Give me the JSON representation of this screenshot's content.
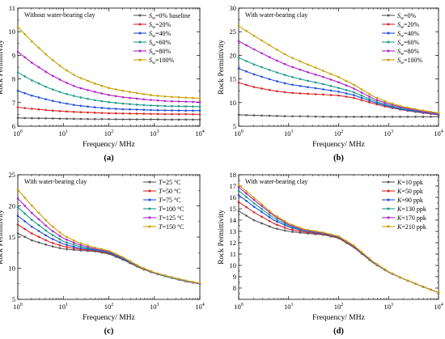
{
  "chart_data": [
    {
      "type": "line",
      "panel_label": "(a)",
      "annotation": "Without water-bearing clay",
      "xlabel": "Frequency/ MHz",
      "ylabel": "Rock Permittivity",
      "x_scale": "log",
      "xlim": [
        1,
        10000
      ],
      "x_ticks": [
        1,
        10,
        100,
        1000,
        10000
      ],
      "ylim": [
        6,
        11
      ],
      "y_ticks": [
        6,
        7,
        8,
        9,
        10,
        11
      ],
      "x": [
        1,
        2,
        5,
        10,
        20,
        50,
        100,
        200,
        500,
        1000,
        2000,
        5000,
        10000
      ],
      "series": [
        {
          "name": "Sw=0% baseline",
          "color": "#555555",
          "values": [
            6.35,
            6.34,
            6.33,
            6.32,
            6.31,
            6.3,
            6.3,
            6.29,
            6.29,
            6.29,
            6.28,
            6.28,
            6.28
          ]
        },
        {
          "name": "Sw=20%",
          "color": "#d62728",
          "values": [
            6.8,
            6.74,
            6.67,
            6.63,
            6.6,
            6.57,
            6.55,
            6.54,
            6.53,
            6.52,
            6.51,
            6.51,
            6.5
          ]
        },
        {
          "name": "Sw=40%",
          "color": "#1f4fd6",
          "values": [
            7.5,
            7.3,
            7.1,
            6.98,
            6.88,
            6.8,
            6.75,
            6.72,
            6.7,
            6.68,
            6.67,
            6.66,
            6.66
          ]
        },
        {
          "name": "Sw=60%",
          "color": "#1a9a8a",
          "values": [
            8.28,
            7.95,
            7.6,
            7.4,
            7.25,
            7.1,
            7.02,
            6.96,
            6.9,
            6.87,
            6.85,
            6.84,
            6.83
          ]
        },
        {
          "name": "Sw=80%",
          "color": "#b020c8",
          "values": [
            9.15,
            8.7,
            8.2,
            7.9,
            7.65,
            7.45,
            7.32,
            7.23,
            7.15,
            7.1,
            7.06,
            7.04,
            7.02
          ]
        },
        {
          "name": "Sw=100%",
          "color": "#c8a000",
          "values": [
            10.2,
            9.6,
            8.9,
            8.45,
            8.1,
            7.8,
            7.62,
            7.5,
            7.38,
            7.3,
            7.25,
            7.21,
            7.18
          ]
        }
      ]
    },
    {
      "type": "line",
      "panel_label": "(b)",
      "annotation": "With water-bearing clay",
      "xlabel": "Frequency/ MHz",
      "ylabel": "Rock Permittivity",
      "x_scale": "log",
      "xlim": [
        1,
        10000
      ],
      "x_ticks": [
        1,
        10,
        100,
        1000,
        10000
      ],
      "ylim": [
        5,
        30
      ],
      "y_ticks": [
        5,
        10,
        15,
        20,
        25,
        30
      ],
      "x": [
        1,
        2,
        5,
        10,
        20,
        50,
        100,
        200,
        500,
        1000,
        2000,
        5000,
        10000
      ],
      "series": [
        {
          "name": "Sw=0%",
          "color": "#555555",
          "values": [
            7.4,
            7.3,
            7.2,
            7.1,
            7.1,
            7.0,
            7.0,
            7.0,
            7.0,
            7.0,
            7.0,
            7.0,
            7.0
          ]
        },
        {
          "name": "Sw=20%",
          "color": "#d62728",
          "values": [
            14.2,
            13.3,
            12.5,
            12.1,
            11.9,
            11.7,
            11.5,
            11.0,
            9.8,
            9.0,
            8.4,
            7.8,
            7.4
          ]
        },
        {
          "name": "Sw=40%",
          "color": "#1f4fd6",
          "values": [
            17.2,
            16.0,
            14.7,
            13.9,
            13.4,
            12.8,
            12.3,
            11.6,
            10.1,
            9.2,
            8.5,
            7.9,
            7.5
          ]
        },
        {
          "name": "Sw=60%",
          "color": "#1a9a8a",
          "values": [
            19.5,
            18.1,
            16.6,
            15.6,
            14.8,
            13.9,
            13.1,
            12.2,
            10.4,
            9.4,
            8.7,
            8.0,
            7.6
          ]
        },
        {
          "name": "Sw=80%",
          "color": "#b020c8",
          "values": [
            23.0,
            21.3,
            19.2,
            17.8,
            16.7,
            15.4,
            14.3,
            13.0,
            10.8,
            9.7,
            8.9,
            8.1,
            7.7
          ]
        },
        {
          "name": "Sw=100%",
          "color": "#c8a000",
          "values": [
            26.2,
            24.2,
            21.6,
            19.8,
            18.4,
            16.7,
            15.4,
            13.8,
            11.3,
            10.0,
            9.1,
            8.3,
            7.8
          ]
        }
      ]
    },
    {
      "type": "line",
      "panel_label": "(c)",
      "annotation": "With water-bearing clay",
      "xlabel": "Frequency/ MHz",
      "ylabel": "Rock Permittivity",
      "x_scale": "log",
      "xlim": [
        1,
        10000
      ],
      "x_ticks": [
        1,
        10,
        100,
        1000,
        10000
      ],
      "ylim": [
        5,
        25
      ],
      "y_ticks": [
        5,
        10,
        15,
        20,
        25
      ],
      "x": [
        1,
        2,
        5,
        10,
        20,
        50,
        100,
        200,
        500,
        1000,
        2000,
        5000,
        10000
      ],
      "series": [
        {
          "name": "T=25 °C",
          "color": "#555555",
          "values": [
            15.6,
            14.5,
            13.6,
            13.1,
            12.9,
            12.7,
            12.3,
            11.4,
            10.0,
            9.2,
            8.6,
            7.9,
            7.5
          ]
        },
        {
          "name": "T=50 °C",
          "color": "#d62728",
          "values": [
            17.0,
            15.6,
            14.2,
            13.5,
            13.1,
            12.8,
            12.4,
            11.5,
            10.0,
            9.2,
            8.6,
            7.9,
            7.5
          ]
        },
        {
          "name": "T=75 °C",
          "color": "#1f4fd6",
          "values": [
            18.4,
            16.7,
            14.9,
            13.9,
            13.3,
            12.9,
            12.5,
            11.5,
            10.1,
            9.2,
            8.6,
            7.9,
            7.5
          ]
        },
        {
          "name": "T=100 °C",
          "color": "#1a9a8a",
          "values": [
            19.8,
            17.8,
            15.6,
            14.3,
            13.6,
            13.0,
            12.6,
            11.6,
            10.1,
            9.3,
            8.6,
            8.0,
            7.5
          ]
        },
        {
          "name": "T=125 °C",
          "color": "#b020c8",
          "values": [
            21.2,
            18.9,
            16.3,
            14.8,
            13.9,
            13.1,
            12.7,
            11.7,
            10.2,
            9.3,
            8.7,
            8.0,
            7.5
          ]
        },
        {
          "name": "T=150 °C",
          "color": "#c8a000",
          "values": [
            22.6,
            20.1,
            17.1,
            15.3,
            14.2,
            13.3,
            12.8,
            11.8,
            10.2,
            9.3,
            8.7,
            8.0,
            7.6
          ]
        }
      ]
    },
    {
      "type": "line",
      "panel_label": "(d)",
      "annotation": "With water-bearing clay",
      "xlabel": "Frequency/ MHz",
      "ylabel": "Rock Permittivity",
      "x_scale": "log",
      "xlim": [
        1,
        10000
      ],
      "x_ticks": [
        1,
        10,
        100,
        1000,
        10000
      ],
      "ylim": [
        7,
        18
      ],
      "y_ticks": [
        8,
        9,
        10,
        11,
        12,
        13,
        14,
        15,
        16,
        17,
        18
      ],
      "x": [
        1,
        2,
        5,
        10,
        20,
        50,
        100,
        200,
        500,
        1000,
        2000,
        5000,
        10000
      ],
      "series": [
        {
          "name": "K=10 ppk",
          "color": "#555555",
          "values": [
            14.8,
            14.0,
            13.3,
            13.0,
            12.85,
            12.7,
            12.4,
            11.6,
            10.2,
            9.4,
            8.8,
            8.1,
            7.6
          ]
        },
        {
          "name": "K=50 ppk",
          "color": "#d62728",
          "values": [
            15.6,
            14.7,
            13.7,
            13.2,
            12.95,
            12.75,
            12.45,
            11.65,
            10.25,
            9.4,
            8.8,
            8.1,
            7.6
          ]
        },
        {
          "name": "K=90 ppk",
          "color": "#1f4fd6",
          "values": [
            16.2,
            15.2,
            14.0,
            13.4,
            13.05,
            12.8,
            12.5,
            11.7,
            10.25,
            9.4,
            8.8,
            8.1,
            7.6
          ]
        },
        {
          "name": "K=130 ppk",
          "color": "#1a9a8a",
          "values": [
            16.6,
            15.5,
            14.2,
            13.5,
            13.1,
            12.83,
            12.52,
            11.72,
            10.28,
            9.42,
            8.8,
            8.1,
            7.6
          ]
        },
        {
          "name": "K=170 ppk",
          "color": "#b020c8",
          "values": [
            16.9,
            15.8,
            14.4,
            13.6,
            13.15,
            12.86,
            12.55,
            11.75,
            10.3,
            9.43,
            8.8,
            8.1,
            7.6
          ]
        },
        {
          "name": "K=210 ppk",
          "color": "#c8a000",
          "values": [
            17.1,
            16.0,
            14.5,
            13.7,
            13.2,
            12.9,
            12.57,
            11.77,
            10.3,
            9.44,
            8.8,
            8.1,
            7.6
          ]
        }
      ]
    }
  ]
}
